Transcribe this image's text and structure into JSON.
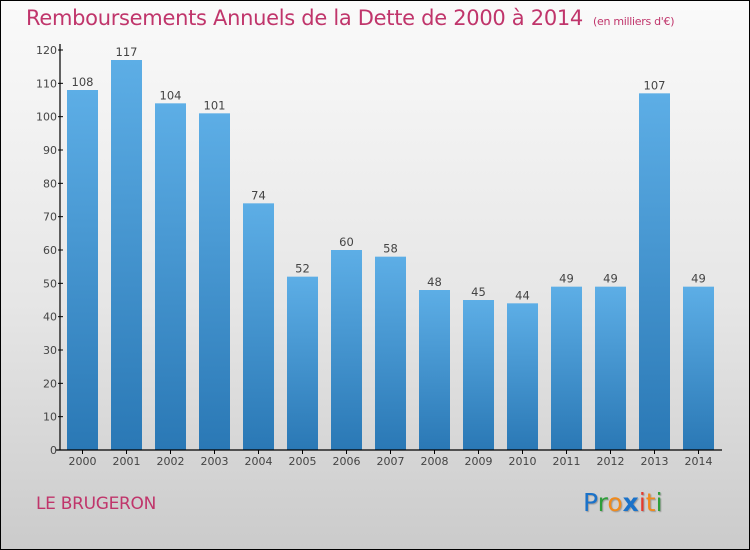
{
  "chart_data": {
    "type": "bar",
    "title": "Remboursements Annuels de la Dette de 2000 à 2014",
    "subtitle": "(en milliers d'€)",
    "xlabel": "",
    "ylabel": "",
    "categories": [
      "2000",
      "2001",
      "2002",
      "2003",
      "2004",
      "2005",
      "2006",
      "2007",
      "2008",
      "2009",
      "2010",
      "2011",
      "2012",
      "2013",
      "2014"
    ],
    "values": [
      108,
      117,
      104,
      101,
      74,
      52,
      60,
      58,
      48,
      45,
      44,
      49,
      49,
      107,
      49
    ],
    "ylim": [
      0,
      120
    ],
    "yticks": [
      0,
      10,
      20,
      30,
      40,
      50,
      60,
      70,
      80,
      90,
      100,
      110,
      120
    ],
    "grid": false,
    "legend": "none",
    "bar_color_top": "#5daee6",
    "bar_color_bottom": "#2a78b5"
  },
  "footer": {
    "commune": "LE BRUGERON",
    "logo": {
      "letters": [
        {
          "char": "P",
          "color": "#1a72c9"
        },
        {
          "char": "r",
          "color": "#2e9e3a"
        },
        {
          "char": "o",
          "color": "#f08a1c"
        },
        {
          "char": "x",
          "color": "#1a72c9"
        },
        {
          "char": "i",
          "color": "#e53a2c"
        },
        {
          "char": "t",
          "color": "#f08a1c"
        },
        {
          "char": "i",
          "color": "#2e9e3a"
        }
      ]
    }
  },
  "colors": {
    "title": "#c0356b",
    "axis": "#000000"
  }
}
